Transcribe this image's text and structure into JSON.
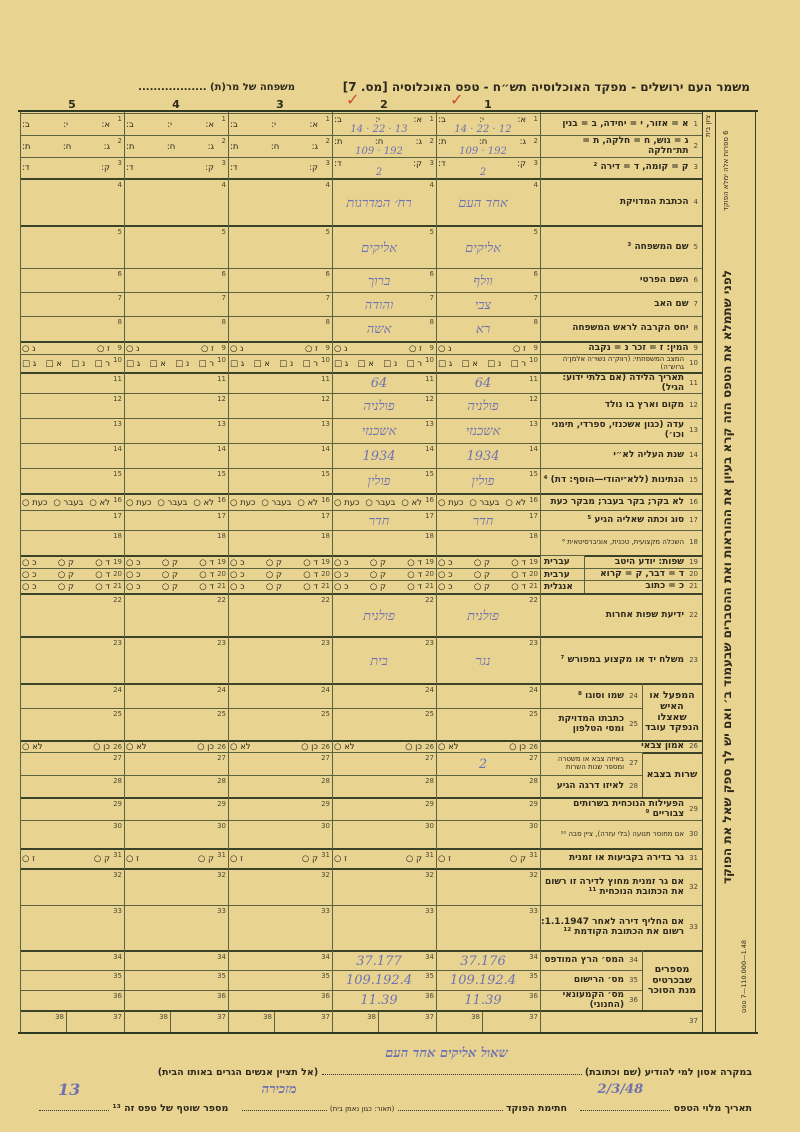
{
  "form": {
    "title": "משמר העם ירושלים - מפקד האוכלוסיה תש״ח - טפס האוכלוסיה [מס. 7]",
    "family_label": "משפחה של מר(ת) ..................",
    "column_numbers": [
      "1",
      "2",
      "3",
      "4",
      "5"
    ],
    "column_marks": [
      "✓",
      "✓",
      "",
      "",
      ""
    ]
  },
  "rows": [
    {
      "num": "1",
      "label": "א = אזור, י = יחידה, ב = בנין",
      "cell": [
        "א:",
        "י:",
        "ב:"
      ]
    },
    {
      "num": "2",
      "label": "ג = גוש, ח = חלקה, ת = תת־חלקה",
      "cell": [
        "ג:",
        "ח:",
        "ת:"
      ]
    },
    {
      "num": "3",
      "label": "ק = קומה, ד = דירה ²",
      "cell": [
        "ק:",
        "ד:"
      ]
    },
    {
      "num": "4",
      "label": "הכתבת המדויקת",
      "cell": []
    },
    {
      "num": "5",
      "label": "שם המשפחה ³",
      "cell": []
    },
    {
      "num": "6",
      "label": "השם הפרטי",
      "cell": []
    },
    {
      "num": "7",
      "label": "שם האב",
      "cell": []
    },
    {
      "num": "8",
      "label": "יחס הקרבה לראש המשפחה",
      "cell": []
    },
    {
      "num": "9",
      "label": "המין: ז = זכר   נ = נקבה",
      "cell": [
        "ז ○",
        "נ ○"
      ]
    },
    {
      "num": "10",
      "label": "המצב המשפחתי: (רווק־ה נשוי־ה אלמן־ה גרוש־ה)",
      "small": true,
      "cell": [
        "ר □",
        "נ □",
        "א □",
        "ג □"
      ]
    },
    {
      "num": "11",
      "label": "תאריך הלידה (אם בלתי ידוע: הגיל)",
      "cell": []
    },
    {
      "num": "12",
      "label": "מקום וארץ בו נולד",
      "cell": []
    },
    {
      "num": "13",
      "label": "עדה (כגון אשכנזי, ספרדי, תימני וכו׳)",
      "cell": []
    },
    {
      "num": "14",
      "label": "שנת העליה לא״י",
      "cell": []
    },
    {
      "num": "15",
      "label": "הנתינות (ללא־יהודי—הוסף: דת) ⁴",
      "cell": []
    },
    {
      "num": "16",
      "label": "לא בקר; בקר בעבר; מבקר כעת",
      "cell": [
        "לא ○",
        "בעבר ○",
        "כעת ○"
      ]
    },
    {
      "num": "17",
      "label": "סוג וכתה שאליה הגיע ⁵",
      "cell": []
    },
    {
      "num": "18",
      "label": "השכלה מקצועית, טכנית, אוניברסיטאית ⁶",
      "small": true,
      "cell": []
    },
    {
      "num": "19",
      "label": "שפות: יודע היטב",
      "sub": "עברית",
      "cell": [
        "ד ○",
        "ק ○",
        "כ ○"
      ]
    },
    {
      "num": "20",
      "label": "ד = דבר, ק = קרוא",
      "sub": "ערבית",
      "cell": [
        "ד ○",
        "ק ○",
        "כ ○"
      ]
    },
    {
      "num": "21",
      "label": "כ = כתוב",
      "sub": "אנגלית",
      "cell": [
        "ד ○",
        "ק ○",
        "כ ○"
      ]
    },
    {
      "num": "22",
      "label": "ידיעת שפות אחרות",
      "cell": []
    },
    {
      "num": "23",
      "label": "משלח יד או מקצוע במפורש ⁷",
      "cell": []
    },
    {
      "num": "24",
      "label": "שמו וסוגו ⁸",
      "cell": []
    },
    {
      "num": "25",
      "label": "כתבתו המדויקת ומסי הטלפון",
      "cell": []
    },
    {
      "num": "26",
      "label": "אמון צבאי",
      "cell": [
        "כן ○",
        "לא ○"
      ]
    },
    {
      "num": "27",
      "label": "באיזה צבא או משטרה ומספר שנות השרות",
      "small": true,
      "cell": []
    },
    {
      "num": "28",
      "label": "לאיזו דרגה הגיע",
      "cell": []
    },
    {
      "num": "29",
      "label": "הפעילות הנוכחית בשרותים צבוריים ⁹",
      "cell": []
    },
    {
      "num": "30",
      "label": "אם מחוסר תנועה (בלי עזרה), ציין סבה ¹⁰",
      "small": true,
      "cell": []
    },
    {
      "num": "31",
      "label": "גר בדירה בקביעות או זמנית",
      "cell": [
        "ק ○",
        "ז ○"
      ]
    },
    {
      "num": "32",
      "label": "אם גר זמנית מחוץ לדירה זו רשום את הכתובת הנוכחית ¹¹",
      "cell": []
    },
    {
      "num": "33",
      "label": "אם החליף דירה לאחר 1.1.1947: רשום את הכתובת הקודמת ¹²",
      "cell": []
    },
    {
      "num": "34",
      "label": "המס׳ הרץ המודפס",
      "cell": []
    },
    {
      "num": "35",
      "label": "מס׳ הרישום",
      "cell": []
    },
    {
      "num": "36",
      "label": "מס׳ הקמעונאי (החנוני)",
      "cell": []
    },
    {
      "num": "37",
      "label": "",
      "cell": []
    }
  ],
  "groups": {
    "employer": "המפעל או האיש שאצלו הנפקד עובד",
    "army": "שרות בצבא",
    "sugar_card": "מספרים שבכרטיס מנת הסוכר"
  },
  "split_row": {
    "left": "38",
    "right": "37"
  },
  "columns": [
    {
      "entries": {
        "1": "12 · 22 · 14",
        "2": "192 · 109",
        "3": "2",
        "4": "אחד העם",
        "5": "אליקים",
        "6": "וולף",
        "7": "צבי",
        "8": "רא",
        "11": "64",
        "12": "פולניה",
        "13": "אשכנזי",
        "14": "1934",
        "15": "פולין",
        "17": "חדר",
        "22": "פולנית",
        "23": "נגר",
        "27": "2",
        "34": "37.176",
        "35": "109.192.4",
        "36": "11.39"
      }
    },
    {
      "entries": {
        "1": "13 · 22 · 14",
        "2": "192 · 109",
        "3": "2",
        "4": "רח׳ המדרגות",
        "5": "אליקים",
        "6": "ברוך",
        "7": "והודה",
        "8": "אשה",
        "11": "64",
        "12": "פולניה",
        "13": "אשכנזי",
        "14": "1934",
        "15": "פולין",
        "17": "חדר",
        "22": "פולנית",
        "23": "בית",
        "34": "37.177",
        "35": "109.192.4",
        "36": "11.39"
      }
    },
    {
      "entries": {}
    },
    {
      "entries": {}
    },
    {
      "entries": {}
    }
  ],
  "side": {
    "main_instruction": "לפני שתמלא את הטפס הזה קרא בעיון את ההוראות ואת ההסברים שבעמוד ב׳ ואם יש לך ספק שאל את הפוקד",
    "top_note": "6 ספרות אלה ימלא הפוקד",
    "house_code": "ציון בית",
    "printer_mark": "1.48—110.000—7 ספס"
  },
  "footer": {
    "emergency_label": "במקרה אסון למי להודיע (שם וכתובת)",
    "emergency_note": "(אל תציין אנשים הגרים באותו הבית)",
    "emergency_value": "שאול אליקים אחד העם",
    "date_label": "תאריך מלוי הטפס",
    "date_value": "2/3/48",
    "officer_signature_label": "חתימת הפוקד",
    "description_label": "(תאור: כגון נאמן בית)",
    "description_value": "מזכירה",
    "serial_label": "מספר שוטף של טפס זה ¹³",
    "serial_value": "13"
  },
  "colors": {
    "paper": "#e9d391",
    "ink": "#2d2a1c",
    "handwriting": "#6f72b0",
    "check": "#d0492e"
  }
}
